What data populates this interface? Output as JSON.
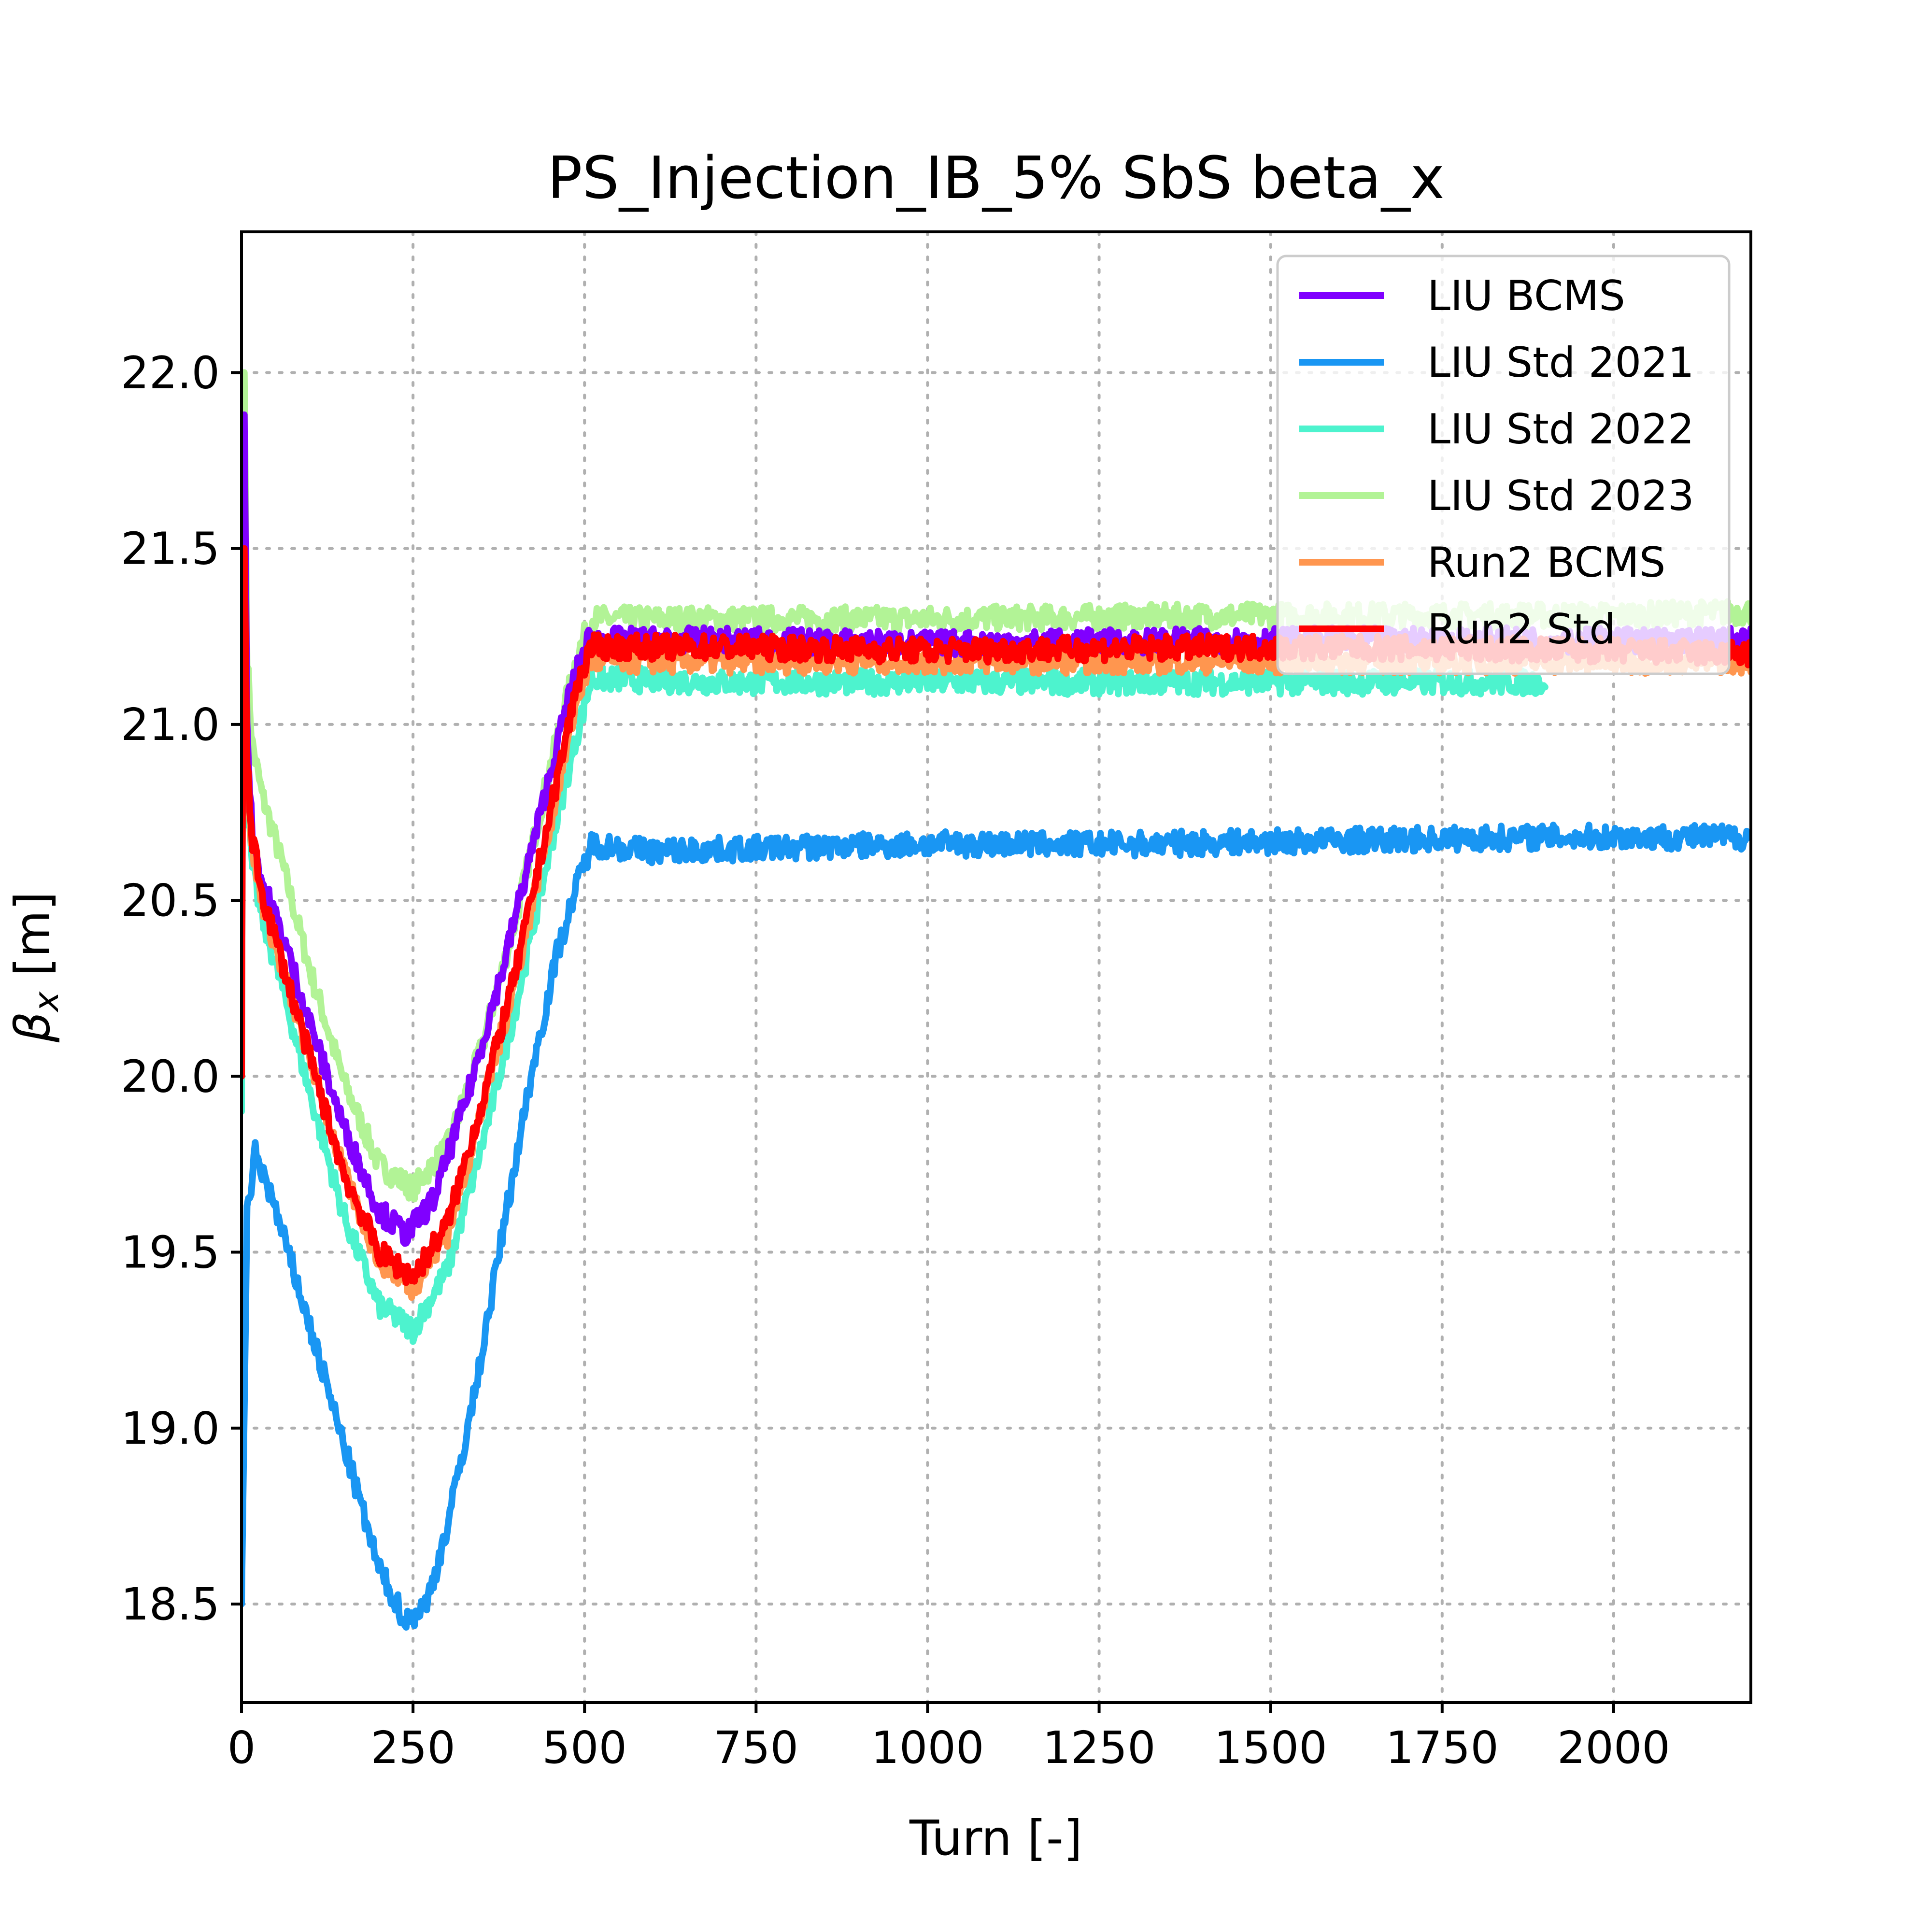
{
  "chart_data": {
    "type": "line",
    "title": "PS_Injection_IB_5% SbS beta_x",
    "xlabel": "Turn [-]",
    "ylabel_symbol": "β",
    "ylabel_sub": "x",
    "ylabel_unit": " [m]",
    "xlim": [
      0,
      2200
    ],
    "ylim": [
      18.22,
      22.4
    ],
    "xticks": [
      0,
      250,
      500,
      750,
      1000,
      1250,
      1500,
      1750,
      2000
    ],
    "xtick_labels": [
      "0",
      "250",
      "500",
      "750",
      "1000",
      "1250",
      "1500",
      "1750",
      "2000"
    ],
    "yticks": [
      18.5,
      19.0,
      19.5,
      20.0,
      20.5,
      21.0,
      21.5,
      22.0
    ],
    "ytick_labels": [
      "18.5",
      "19.0",
      "19.5",
      "20.0",
      "20.5",
      "21.0",
      "21.5",
      "22.0"
    ],
    "grid": true,
    "legend_position": "top-right",
    "series": [
      {
        "name": "LIU BCMS",
        "color": "#8000ff",
        "noise": 0.035,
        "x": [
          0,
          3,
          8,
          15,
          30,
          60,
          100,
          150,
          200,
          240,
          280,
          330,
          380,
          430,
          480,
          505,
          700,
          1000,
          1500,
          2000,
          2200
        ],
        "y": [
          20.1,
          22.1,
          21.0,
          20.7,
          20.55,
          20.4,
          20.15,
          19.85,
          19.62,
          19.55,
          19.65,
          19.95,
          20.3,
          20.7,
          21.1,
          21.24,
          21.24,
          21.23,
          21.24,
          21.24,
          21.24
        ]
      },
      {
        "name": "LIU Std 2021",
        "color": "#1996f3",
        "noise": 0.035,
        "x": [
          0,
          8,
          20,
          40,
          80,
          120,
          160,
          200,
          240,
          270,
          300,
          340,
          380,
          420,
          460,
          490,
          510,
          600,
          800,
          1000,
          1300,
          1600,
          1900,
          2200
        ],
        "y": [
          18.5,
          19.6,
          19.78,
          19.68,
          19.42,
          19.15,
          18.88,
          18.6,
          18.45,
          18.5,
          18.72,
          19.1,
          19.55,
          19.98,
          20.35,
          20.55,
          20.66,
          20.64,
          20.65,
          20.66,
          20.66,
          20.67,
          20.68,
          20.68
        ]
      },
      {
        "name": "LIU Std 2022",
        "color": "#4df3ce",
        "noise": 0.035,
        "x": [
          0,
          3,
          8,
          15,
          30,
          60,
          100,
          150,
          200,
          250,
          300,
          350,
          400,
          450,
          490,
          510,
          700,
          1000,
          1300,
          1600,
          1900
        ],
        "y": [
          19.9,
          21.9,
          20.8,
          20.6,
          20.45,
          20.25,
          19.95,
          19.6,
          19.35,
          19.28,
          19.45,
          19.8,
          20.2,
          20.65,
          20.98,
          21.13,
          21.12,
          21.12,
          21.12,
          21.12,
          21.12
        ]
      },
      {
        "name": "LIU Std 2023",
        "color": "#b2f396",
        "noise": 0.035,
        "x": [
          0,
          3,
          8,
          15,
          30,
          60,
          100,
          150,
          200,
          250,
          300,
          350,
          400,
          450,
          490,
          510,
          700,
          1000,
          1500,
          2000,
          2200
        ],
        "y": [
          20.3,
          22.2,
          21.2,
          20.95,
          20.8,
          20.6,
          20.3,
          19.98,
          19.75,
          19.68,
          19.8,
          20.08,
          20.45,
          20.88,
          21.2,
          21.3,
          21.3,
          21.3,
          21.31,
          21.31,
          21.32
        ]
      },
      {
        "name": "Run2 BCMS",
        "color": "#ff964f",
        "noise": 0.035,
        "x": [
          0,
          3,
          8,
          15,
          30,
          60,
          100,
          150,
          200,
          250,
          300,
          350,
          400,
          450,
          490,
          510,
          700,
          1000,
          1500,
          2000,
          2200
        ],
        "y": [
          20.0,
          22.0,
          20.9,
          20.65,
          20.5,
          20.3,
          20.05,
          19.72,
          19.48,
          19.4,
          19.55,
          19.9,
          20.28,
          20.72,
          21.08,
          21.18,
          21.18,
          21.18,
          21.18,
          21.18,
          21.18
        ]
      },
      {
        "name": "Run2 Std",
        "color": "#ff0000",
        "noise": 0.035,
        "x": [
          0,
          3,
          8,
          15,
          30,
          60,
          100,
          150,
          200,
          250,
          300,
          350,
          400,
          450,
          490,
          510,
          700,
          1000,
          1500,
          2000,
          2200
        ],
        "y": [
          20.0,
          21.65,
          20.9,
          20.68,
          20.52,
          20.32,
          20.05,
          19.72,
          19.5,
          19.43,
          19.58,
          19.92,
          20.3,
          20.75,
          21.12,
          21.22,
          21.22,
          21.21,
          21.22,
          21.21,
          21.2
        ]
      }
    ]
  }
}
